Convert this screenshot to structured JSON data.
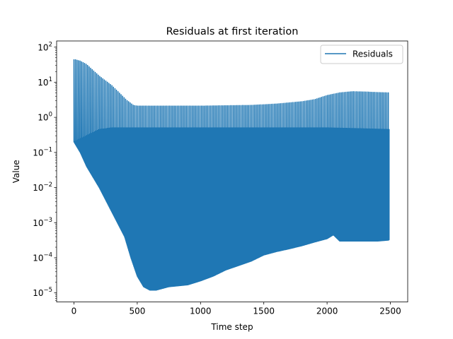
{
  "chart_data": {
    "type": "line",
    "title": "Residuals at first iteration",
    "xlabel": "Time step",
    "ylabel": "Value",
    "yscale": "log",
    "xlim": [
      -137,
      2637
    ],
    "ylim": [
      5.5e-06,
      150
    ],
    "x_ticks": [
      {
        "value": 0,
        "label": "0"
      },
      {
        "value": 500,
        "label": "500"
      },
      {
        "value": 1000,
        "label": "1000"
      },
      {
        "value": 1500,
        "label": "1500"
      },
      {
        "value": 2000,
        "label": "2000"
      },
      {
        "value": 2500,
        "label": "2500"
      }
    ],
    "y_ticks": [
      {
        "value": 1e-05,
        "base": "10",
        "exp": "−5"
      },
      {
        "value": 0.0001,
        "base": "10",
        "exp": "−4"
      },
      {
        "value": 0.001,
        "base": "10",
        "exp": "−3"
      },
      {
        "value": 0.01,
        "base": "10",
        "exp": "−2"
      },
      {
        "value": 0.1,
        "base": "10",
        "exp": "−1"
      },
      {
        "value": 1,
        "base": "10",
        "exp": "0"
      },
      {
        "value": 10,
        "base": "10",
        "exp": "1"
      },
      {
        "value": 100,
        "base": "10",
        "exp": "2"
      }
    ],
    "grid": false,
    "legend": "top-right",
    "series": [
      {
        "name": "Residuals",
        "color": "#1f77b4",
        "upper_peak_envelope": {
          "x": [
            0,
            50,
            100,
            200,
            300,
            420,
            470,
            500,
            600,
            800,
            1000,
            1200,
            1400,
            1600,
            1800,
            1900,
            2000,
            2100,
            2200,
            2300,
            2400,
            2490
          ],
          "y": [
            45,
            40,
            32,
            15,
            8,
            3,
            2.2,
            2.1,
            2.1,
            2.1,
            2.1,
            2.15,
            2.2,
            2.4,
            2.8,
            3.2,
            4.2,
            5.0,
            5.4,
            5.3,
            5.1,
            5.0
          ]
        },
        "mid_band_envelope": {
          "x": [
            0,
            100,
            200,
            300,
            400,
            500,
            800,
            1200,
            1600,
            2000,
            2200,
            2490
          ],
          "y": [
            0.2,
            0.3,
            0.45,
            0.5,
            0.5,
            0.5,
            0.5,
            0.5,
            0.5,
            0.5,
            0.48,
            0.45
          ]
        },
        "lower_envelope": {
          "x": [
            0,
            50,
            100,
            150,
            200,
            300,
            400,
            450,
            500,
            550,
            600,
            650,
            750,
            900,
            1000,
            1100,
            1200,
            1300,
            1400,
            1500,
            1600,
            1700,
            1800,
            1900,
            2000,
            2050,
            2100,
            2200,
            2300,
            2400,
            2490
          ],
          "y": [
            0.2,
            0.1,
            0.04,
            0.02,
            0.01,
            0.002,
            0.0004,
            0.0001,
            3e-05,
            1.5e-05,
            1.2e-05,
            1.2e-05,
            1.5e-05,
            1.7e-05,
            2.2e-05,
            3e-05,
            4.5e-05,
            6e-05,
            8e-05,
            0.00012,
            0.00015,
            0.00018,
            0.00022,
            0.00028,
            0.00035,
            0.00045,
            0.0003,
            0.0003,
            0.0003,
            0.0003,
            0.00032
          ]
        }
      }
    ]
  }
}
